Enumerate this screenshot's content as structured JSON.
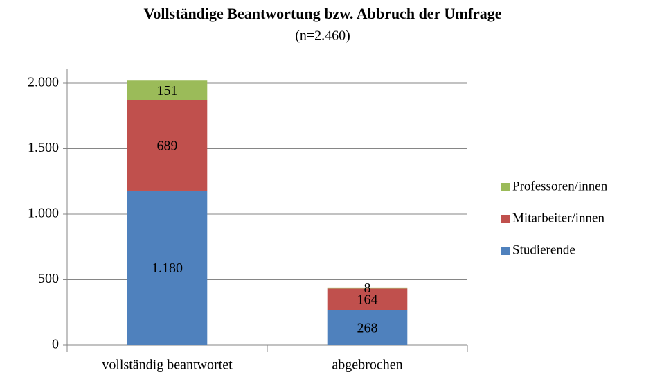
{
  "chart_data": {
    "type": "stacked_bar",
    "title": "Vollständige Beantwortung bzw. Abbruch der Umfrage",
    "subtitle": "(n=2.460)",
    "categories": [
      "vollständig beantwortet",
      "abgebrochen"
    ],
    "series": [
      {
        "name": "Studierende",
        "color": "#4f81bd",
        "values": [
          1180,
          268
        ],
        "value_labels": [
          "1.180",
          "268"
        ]
      },
      {
        "name": "Mitarbeiter/innen",
        "color": "#c0504d",
        "values": [
          689,
          164
        ],
        "value_labels": [
          "689",
          "164"
        ]
      },
      {
        "name": "Professoren/innen",
        "color": "#9bbb59",
        "values": [
          151,
          8
        ],
        "value_labels": [
          "151",
          "8"
        ]
      }
    ],
    "ylim": [
      0,
      2000
    ],
    "yticks": [
      0,
      500,
      {
        "value": 1000,
        "label": "1.000"
      },
      {
        "value": 1500,
        "label": "1.500"
      },
      {
        "value": 2000,
        "label": "2.000"
      }
    ],
    "grid": true,
    "legend": "right"
  }
}
